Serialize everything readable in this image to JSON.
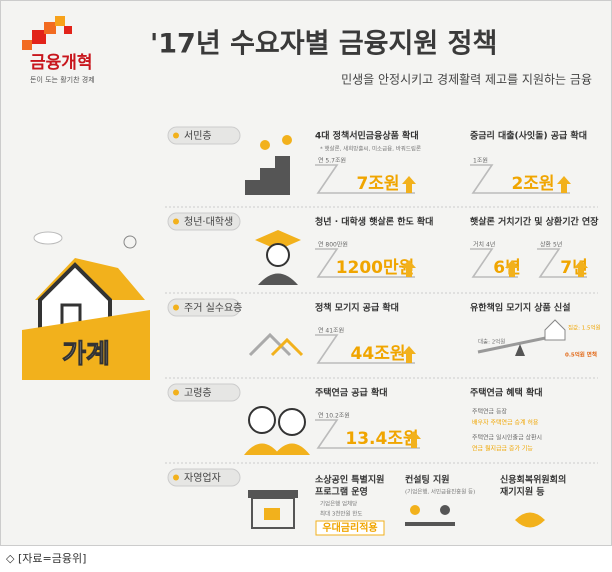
{
  "logo": {
    "name": "금융개혁",
    "slogan": "돈이 도는 활기찬 경제"
  },
  "header": {
    "title": "'17년 수요자별 금융지원 정책",
    "subtitle": "민생을 안정시키고 경제활력 제고를 지원하는 금융"
  },
  "house_label": "가계",
  "sections": [
    {
      "label": "서민층",
      "items": [
        {
          "title": "4대 정책서민금융상품 확대",
          "note": "* 햇살론, 새희망홀씨, 미소금융, 바꿔드림론",
          "from": "연 5.7조원",
          "to": "7조원"
        },
        {
          "title": "중금리 대출(사잇돌) 공급 확대",
          "from": "1조원",
          "to": "2조원"
        }
      ]
    },
    {
      "label": "청년·대학생",
      "items": [
        {
          "title": "청년 · 대학생 햇살론 한도 확대",
          "from": "연 800만원",
          "to": "1200만원"
        },
        {
          "title": "햇살론 거치기간 및 상환기간 연장",
          "from": "거치 4년",
          "to": "6년",
          "from2": "상환 5년",
          "to2": "7년"
        }
      ]
    },
    {
      "label": "주거 실수요층",
      "items": [
        {
          "title": "정책 모기지 공급 확대",
          "from": "연 41조원",
          "to": "44조원"
        },
        {
          "title": "유한책임 모기지 상품 신설",
          "loan": "대출: 2억원",
          "price": "집값: 1.5억원",
          "exempt": "0.5억원 면책"
        }
      ]
    },
    {
      "label": "고령층",
      "items": [
        {
          "title": "주택연금 공급 확대",
          "from": "연 10.2조원",
          "to": "13.4조원"
        },
        {
          "title": "주택연금 혜택 확대",
          "lines": [
            "주택연금 등장",
            "배우자 주택연금 승계 허용",
            "주택연금 일시인출금 상환시",
            "연금 월지급금 증가 기능"
          ]
        }
      ]
    },
    {
      "label": "자영업자",
      "items": [
        {
          "title": "소상공인 특별지원",
          "title2": "프로그램 운영",
          "lines": [
            "기업은행 업체당",
            "최대 3천만원 한도"
          ],
          "highlight": "우대금리적용"
        },
        {
          "title": "컨설팅 지원",
          "note": "(기업은행, 서민금융진흥원 등)"
        },
        {
          "title": "신용회복위원회의",
          "title2": "재기지원 등"
        }
      ]
    }
  ],
  "source": "◇ [자료=금융위]"
}
